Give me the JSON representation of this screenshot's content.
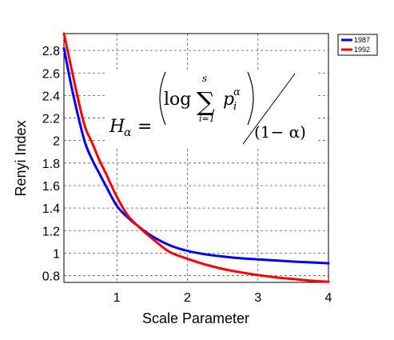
{
  "chart_data": {
    "type": "line",
    "title": "",
    "xlabel": "Scale Parameter",
    "ylabel": "Renyi Index",
    "xlim": [
      0.25,
      4.0
    ],
    "ylim": [
      0.74,
      2.95
    ],
    "xticks": [
      1,
      2,
      3,
      4
    ],
    "yticks": [
      0.8,
      1.0,
      1.2,
      1.4,
      1.6,
      1.8,
      2.0,
      2.2,
      2.4,
      2.6,
      2.8
    ],
    "xtick_labels": [
      "1",
      "2",
      "3",
      "4"
    ],
    "ytick_labels": [
      "0.8",
      "1",
      "1.2",
      "1.4",
      "1.6",
      "1.8",
      "2",
      "2.2",
      "2.4",
      "2.6",
      "2.8"
    ],
    "grid": true,
    "grid_style": "dashed",
    "legend_position": "top-right outside",
    "series": [
      {
        "name": "1987",
        "color": "#0000ff",
        "x": [
          0.25,
          0.35,
          0.45,
          0.55,
          0.65,
          0.75,
          0.85,
          1.0,
          1.15,
          1.3,
          1.5,
          1.75,
          2.0,
          2.25,
          2.5,
          2.75,
          3.0,
          3.25,
          3.5,
          3.75,
          4.0
        ],
        "y": [
          2.82,
          2.5,
          2.22,
          1.98,
          1.83,
          1.71,
          1.59,
          1.42,
          1.32,
          1.24,
          1.15,
          1.07,
          1.02,
          0.99,
          0.97,
          0.955,
          0.945,
          0.935,
          0.925,
          0.918,
          0.91
        ]
      },
      {
        "name": "1992",
        "color": "#ff0000",
        "x": [
          0.25,
          0.35,
          0.45,
          0.55,
          0.65,
          0.75,
          0.85,
          1.0,
          1.15,
          1.3,
          1.5,
          1.75,
          2.0,
          2.25,
          2.5,
          2.75,
          3.0,
          3.25,
          3.5,
          3.75,
          4.0
        ],
        "y": [
          2.95,
          2.66,
          2.37,
          2.12,
          1.98,
          1.83,
          1.7,
          1.5,
          1.34,
          1.24,
          1.13,
          1.01,
          0.95,
          0.9,
          0.86,
          0.83,
          0.805,
          0.785,
          0.77,
          0.755,
          0.745
        ]
      }
    ],
    "annotations": {
      "formula_lhs": "H",
      "formula_lhs_sub": "α",
      "formula_eq": "=",
      "formula_log": "log",
      "formula_sum": "∑",
      "formula_sum_top": "s",
      "formula_sum_bottom": "i=1",
      "formula_p": "p",
      "formula_p_sub": "i",
      "formula_p_sup": "α",
      "formula_denominator": "(1− α)"
    }
  }
}
